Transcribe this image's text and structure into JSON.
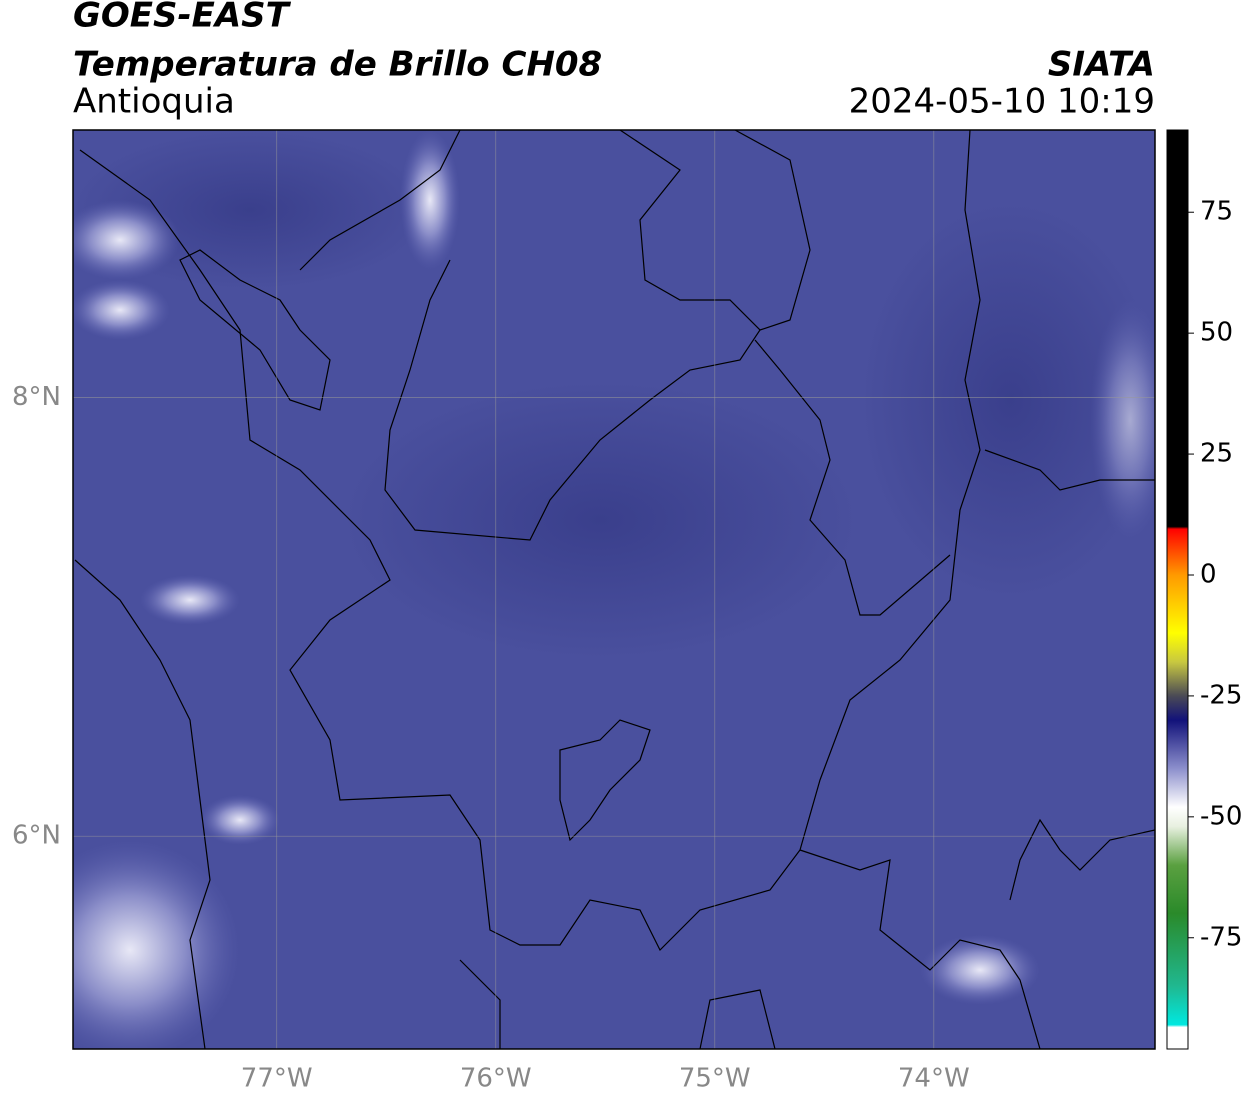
{
  "header": {
    "title": "GOES-EAST",
    "subtitle": "Temperatura de Brillo CH08",
    "region": "Antioquia",
    "source": "SIATA",
    "datetime": "2024-05-10 10:19"
  },
  "map": {
    "xlim": [
      -77.93,
      -72.99
    ],
    "ylim": [
      5.03,
      9.22
    ],
    "xticks": [
      {
        "value": -77,
        "label": "77°W"
      },
      {
        "value": -76,
        "label": "76°W"
      },
      {
        "value": -75,
        "label": "75°W"
      },
      {
        "value": -74,
        "label": "74°W"
      }
    ],
    "yticks": [
      {
        "value": 8,
        "label": "8°N"
      },
      {
        "value": 6,
        "label": "6°N"
      }
    ],
    "grid": true,
    "background": "#4a509e"
  },
  "colorbar": {
    "lim": [
      -98,
      92
    ],
    "ticks": [
      75,
      50,
      25,
      0,
      -25,
      -50,
      -75
    ],
    "colorscale": [
      {
        "value": -98,
        "color": "#ffffff"
      },
      {
        "value": -93.5,
        "color": "#ffffff"
      },
      {
        "value": -93,
        "color": "#00e8e0"
      },
      {
        "value": -85,
        "color": "#20b890"
      },
      {
        "value": -70,
        "color": "#2a8a2a"
      },
      {
        "value": -60,
        "color": "#5aa040"
      },
      {
        "value": -52,
        "color": "#e8f0e0"
      },
      {
        "value": -48,
        "color": "#ffffff"
      },
      {
        "value": -40,
        "color": "#8c8fcc"
      },
      {
        "value": -30,
        "color": "#12127a"
      },
      {
        "value": -25,
        "color": "#4a4a55"
      },
      {
        "value": -18,
        "color": "#c8c840"
      },
      {
        "value": -12,
        "color": "#ffff00"
      },
      {
        "value": 0,
        "color": "#ff9a00"
      },
      {
        "value": 8,
        "color": "#ff1a00"
      },
      {
        "value": 9.5,
        "color": "#ff0000"
      },
      {
        "value": 10,
        "color": "#000000"
      },
      {
        "value": 92,
        "color": "#000000"
      }
    ]
  }
}
